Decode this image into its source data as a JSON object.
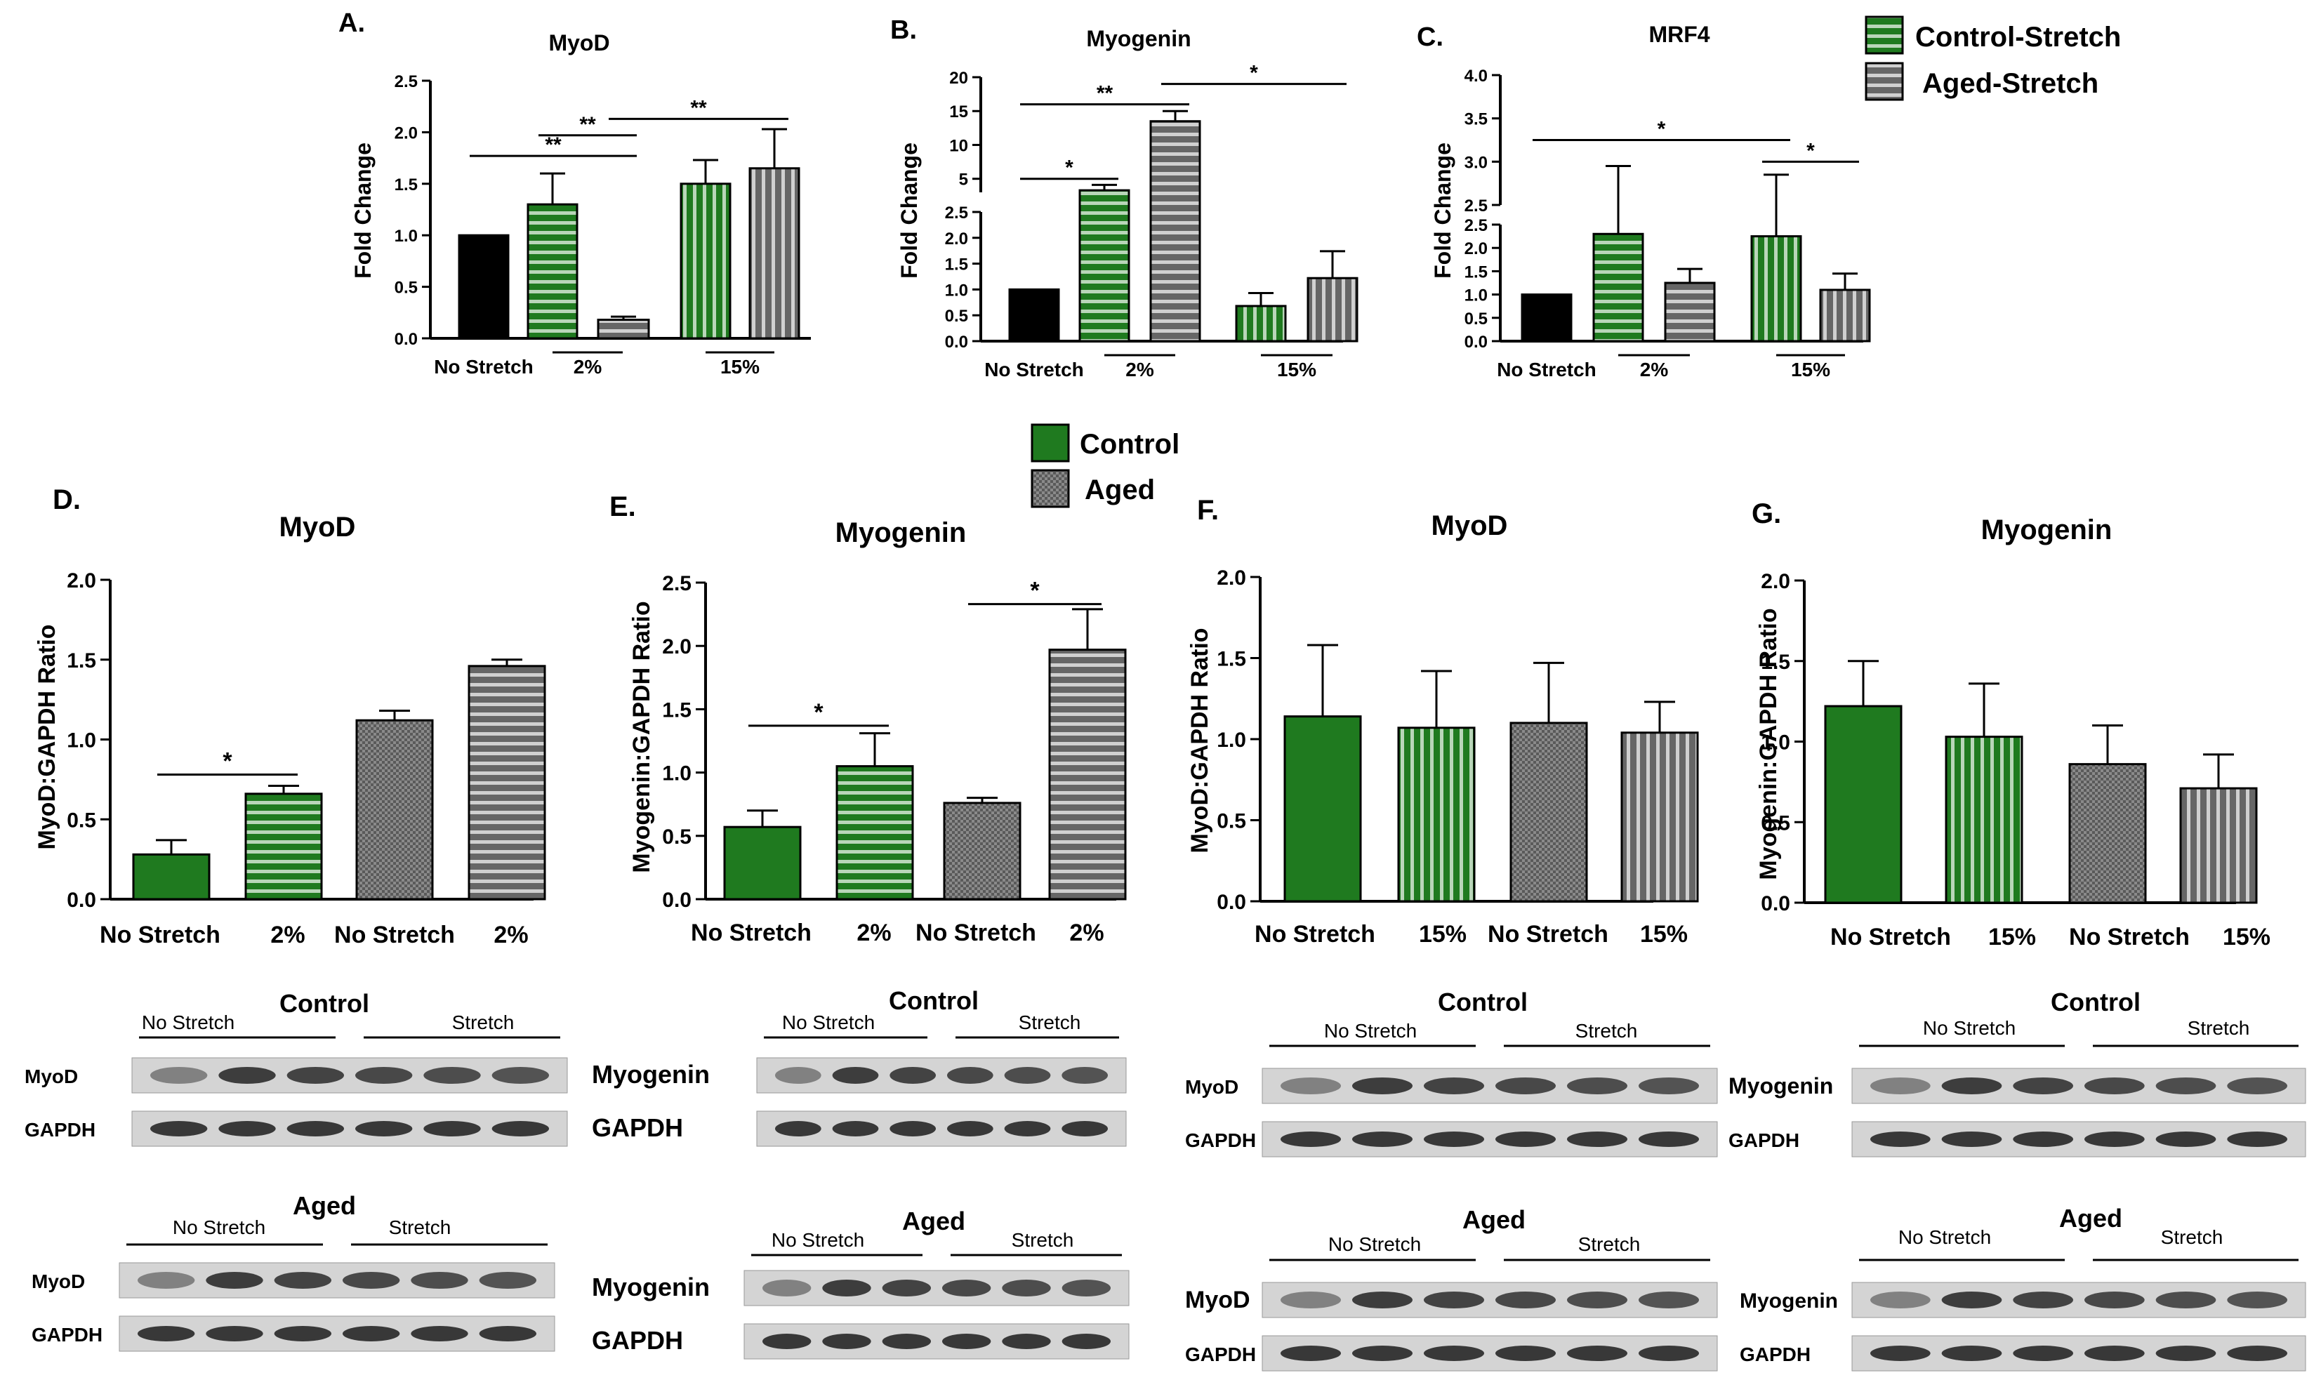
{
  "legend_top": {
    "items": [
      {
        "label": "Control-Stretch",
        "fill": "green-stripe-h"
      },
      {
        "label": "Aged-Stretch",
        "fill": "gray-stripe-h"
      }
    ]
  },
  "legend_mid": {
    "items": [
      {
        "label": "Control",
        "fill": "green"
      },
      {
        "label": "Aged",
        "fill": "gray-check"
      }
    ]
  },
  "chart_data": [
    {
      "id": "A",
      "panel_label": "A.",
      "type": "bar",
      "title": "MyoD",
      "ylabel": "Fold Change",
      "ylim": [
        0,
        2.5
      ],
      "yticks": [
        "0.0",
        "0.5",
        "1.0",
        "1.5",
        "2.0",
        "2.5"
      ],
      "groups": [
        "No Stretch",
        "2%",
        "15%"
      ],
      "bars": [
        {
          "name": "No Stretch",
          "value": 1.0,
          "err": 0,
          "fill": "black"
        },
        {
          "name": "Control 2%",
          "value": 1.3,
          "err": 0.3,
          "fill": "green-stripe-h"
        },
        {
          "name": "Aged 2%",
          "value": 0.18,
          "err": 0.03,
          "fill": "gray-stripe-h"
        },
        {
          "name": "Control 15%",
          "value": 1.5,
          "err": 0.23,
          "fill": "green-stripe-v"
        },
        {
          "name": "Aged 15%",
          "value": 1.65,
          "err": 0.38,
          "fill": "gray-stripe-v"
        }
      ],
      "significance": [
        {
          "from": 0,
          "to": 2,
          "label": "**",
          "y": 1.77
        },
        {
          "from": 1,
          "to": 2,
          "label": "**",
          "y": 1.97
        },
        {
          "from": 2,
          "to": 4,
          "label": "**",
          "y": 2.13
        }
      ]
    },
    {
      "id": "B",
      "panel_label": "B.",
      "type": "bar",
      "title": "Myogenin",
      "ylabel": "Fold Change",
      "broken_axis": true,
      "lower_ylim": [
        0,
        2.5
      ],
      "upper_ylim": [
        3,
        20
      ],
      "yticks_lower": [
        "0.0",
        "0.5",
        "1.0",
        "1.5",
        "2.0",
        "2.5"
      ],
      "yticks_upper": [
        "5",
        "10",
        "15",
        "20"
      ],
      "groups": [
        "No Stretch",
        "2%",
        "15%"
      ],
      "bars": [
        {
          "name": "No Stretch",
          "value": 1.0,
          "err": 0,
          "fill": "black"
        },
        {
          "name": "Control 2%",
          "value": 3.3,
          "err": 0.8,
          "fill": "green-stripe-h"
        },
        {
          "name": "Aged 2%",
          "value": 13.5,
          "err": 1.5,
          "fill": "gray-stripe-h"
        },
        {
          "name": "Control 15%",
          "value": 0.68,
          "err": 0.25,
          "fill": "green-stripe-v"
        },
        {
          "name": "Aged 15%",
          "value": 1.22,
          "err": 0.52,
          "fill": "gray-stripe-v"
        }
      ],
      "significance": [
        {
          "from": 0,
          "to": 1,
          "label": "*",
          "y": 5.0
        },
        {
          "from": 0,
          "to": 2,
          "label": "**",
          "y": 16.0
        },
        {
          "from": 2,
          "to": 4,
          "label": "*",
          "y": 19.0
        }
      ]
    },
    {
      "id": "C",
      "panel_label": "C.",
      "type": "bar",
      "title": "MRF4",
      "ylabel": "Fold Change",
      "broken_axis": true,
      "lower_ylim": [
        0,
        2.5
      ],
      "upper_ylim": [
        2.5,
        4.0
      ],
      "yticks_lower": [
        "0.0",
        "0.5",
        "1.0",
        "1.5",
        "2.0",
        "2.5"
      ],
      "yticks_upper": [
        "2.5",
        "3.0",
        "3.5",
        "4.0"
      ],
      "groups": [
        "No Stretch",
        "2%",
        "15%"
      ],
      "bars": [
        {
          "name": "No Stretch",
          "value": 1.0,
          "err": 0,
          "fill": "black"
        },
        {
          "name": "Control 2%",
          "value": 2.3,
          "err": 0.65,
          "fill": "green-stripe-h"
        },
        {
          "name": "Aged 2%",
          "value": 1.25,
          "err": 0.3,
          "fill": "gray-stripe-h"
        },
        {
          "name": "Control 15%",
          "value": 2.25,
          "err": 0.6,
          "fill": "green-stripe-v"
        },
        {
          "name": "Aged 15%",
          "value": 1.1,
          "err": 0.35,
          "fill": "gray-stripe-v"
        }
      ],
      "significance": [
        {
          "from": 0,
          "to": 3,
          "label": "*",
          "y": 3.25
        },
        {
          "from": 3,
          "to": 4,
          "label": "*",
          "y": 3.0
        }
      ]
    },
    {
      "id": "D",
      "panel_label": "D.",
      "type": "bar",
      "title": "MyoD",
      "ylabel": "MyoD:GAPDH Ratio",
      "ylim": [
        0,
        2.0
      ],
      "yticks": [
        "0.0",
        "0.5",
        "1.0",
        "1.5",
        "2.0"
      ],
      "categories": [
        "No Stretch",
        "2%",
        "No Stretch",
        "2%"
      ],
      "bars": [
        {
          "value": 0.28,
          "err": 0.09,
          "fill": "green"
        },
        {
          "value": 0.66,
          "err": 0.05,
          "fill": "green-stripe-h"
        },
        {
          "value": 1.12,
          "err": 0.06,
          "fill": "gray-check"
        },
        {
          "value": 1.46,
          "err": 0.04,
          "fill": "gray-stripe-h"
        }
      ],
      "significance": [
        {
          "from": 0,
          "to": 1,
          "label": "*",
          "y": 0.78
        }
      ]
    },
    {
      "id": "E",
      "panel_label": "E.",
      "type": "bar",
      "title": "Myogenin",
      "ylabel": "Myogenin:GAPDH Ratio",
      "ylim": [
        0,
        2.5
      ],
      "yticks": [
        "0.0",
        "0.5",
        "1.0",
        "1.5",
        "2.0",
        "2.5"
      ],
      "categories": [
        "No Stretch",
        "2%",
        "No Stretch",
        "2%"
      ],
      "bars": [
        {
          "value": 0.57,
          "err": 0.13,
          "fill": "green"
        },
        {
          "value": 1.05,
          "err": 0.26,
          "fill": "green-stripe-h"
        },
        {
          "value": 0.76,
          "err": 0.04,
          "fill": "gray-check"
        },
        {
          "value": 1.97,
          "err": 0.32,
          "fill": "gray-stripe-h"
        }
      ],
      "significance": [
        {
          "from": 0,
          "to": 1,
          "label": "*",
          "y": 1.37
        },
        {
          "from": 2,
          "to": 3,
          "label": "*",
          "y": 2.33
        }
      ]
    },
    {
      "id": "F",
      "panel_label": "F.",
      "type": "bar",
      "title": "MyoD",
      "ylabel": "MyoD:GAPDH Ratio",
      "ylim": [
        0,
        2.0
      ],
      "yticks": [
        "0.0",
        "0.5",
        "1.0",
        "1.5",
        "2.0"
      ],
      "categories": [
        "No Stretch",
        "15%",
        "No Stretch",
        "15%"
      ],
      "bars": [
        {
          "value": 1.14,
          "err": 0.44,
          "fill": "green"
        },
        {
          "value": 1.07,
          "err": 0.35,
          "fill": "green-stripe-v"
        },
        {
          "value": 1.1,
          "err": 0.37,
          "fill": "gray-check"
        },
        {
          "value": 1.04,
          "err": 0.19,
          "fill": "gray-stripe-v"
        }
      ],
      "significance": []
    },
    {
      "id": "G",
      "panel_label": "G.",
      "type": "bar",
      "title": "Myogenin",
      "ylabel": "Myogenin:GAPDH Ratio",
      "ylim": [
        0,
        2.0
      ],
      "yticks": [
        "0.0",
        "0.5",
        "1.0",
        "1.5",
        "2.0"
      ],
      "categories": [
        "No Stretch",
        "15%",
        "No Stretch",
        "15%"
      ],
      "bars": [
        {
          "value": 1.22,
          "err": 0.28,
          "fill": "green"
        },
        {
          "value": 1.03,
          "err": 0.33,
          "fill": "green-stripe-v"
        },
        {
          "value": 0.86,
          "err": 0.24,
          "fill": "gray-check"
        },
        {
          "value": 0.71,
          "err": 0.21,
          "fill": "gray-stripe-v"
        }
      ],
      "significance": []
    }
  ],
  "blots": [
    {
      "id": "D-control",
      "title": "Control",
      "left_label": "No Stretch",
      "right_label": "Stretch",
      "rows": [
        "MyoD",
        "GAPDH"
      ]
    },
    {
      "id": "D-aged",
      "title": "Aged",
      "left_label": "No Stretch",
      "right_label": "Stretch",
      "rows": [
        "MyoD",
        "GAPDH"
      ]
    },
    {
      "id": "E-control",
      "title": "Control",
      "left_label": "No Stretch",
      "right_label": "Stretch",
      "rows": [
        "Myogenin",
        "GAPDH"
      ]
    },
    {
      "id": "E-aged",
      "title": "Aged",
      "left_label": "No Stretch",
      "right_label": "Stretch",
      "rows": [
        "Myogenin",
        "GAPDH"
      ]
    },
    {
      "id": "F-control",
      "title": "Control",
      "left_label": "No Stretch",
      "right_label": "Stretch",
      "rows": [
        "MyoD",
        "GAPDH"
      ]
    },
    {
      "id": "F-aged",
      "title": "Aged",
      "left_label": "No Stretch",
      "right_label": "Stretch",
      "rows": [
        "MyoD",
        "GAPDH"
      ]
    },
    {
      "id": "G-control",
      "title": "Control",
      "left_label": "No Stretch",
      "right_label": "Stretch",
      "rows": [
        "Myogenin",
        "GAPDH"
      ]
    },
    {
      "id": "G-aged",
      "title": "Aged",
      "left_label": "No Stretch",
      "right_label": "Stretch",
      "rows": [
        "Myogenin",
        "GAPDH"
      ]
    }
  ],
  "colors": {
    "green": "#1f7a1f",
    "gray": "#6f6f6f",
    "black": "#000000",
    "blot_bg": "#d9d9d9",
    "band": "#2a2a2a"
  }
}
